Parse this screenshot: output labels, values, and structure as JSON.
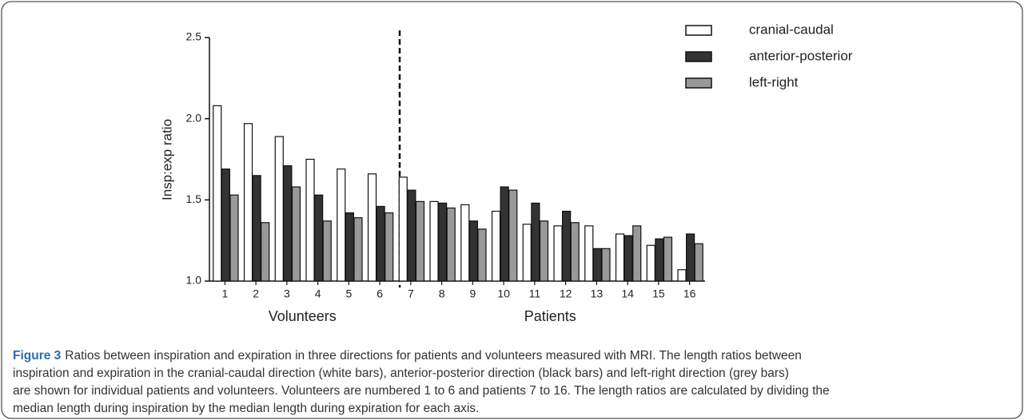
{
  "chart_data": {
    "type": "bar",
    "y_label": "Insp:exp ratio",
    "categories": [
      "1",
      "2",
      "3",
      "4",
      "5",
      "6",
      "7",
      "8",
      "9",
      "10",
      "11",
      "12",
      "13",
      "14",
      "15",
      "16"
    ],
    "groups": [
      {
        "label": "Volunteers",
        "categories": [
          0,
          5
        ]
      },
      {
        "label": "Patients",
        "categories": [
          6,
          15
        ]
      }
    ],
    "series": [
      {
        "name": "cranial-caudal",
        "color": "#ffffff",
        "values": [
          2.08,
          1.97,
          1.89,
          1.75,
          1.69,
          1.66,
          1.64,
          1.49,
          1.47,
          1.43,
          1.35,
          1.34,
          1.34,
          1.29,
          1.22,
          1.07
        ]
      },
      {
        "name": "anterior-posterior",
        "color": "#333333",
        "values": [
          1.69,
          1.65,
          1.71,
          1.53,
          1.42,
          1.46,
          1.56,
          1.48,
          1.37,
          1.58,
          1.48,
          1.43,
          1.2,
          1.28,
          1.26,
          1.29
        ]
      },
      {
        "name": "left-right",
        "color": "#999999",
        "values": [
          1.53,
          1.36,
          1.58,
          1.37,
          1.39,
          1.42,
          1.49,
          1.45,
          1.32,
          1.56,
          1.37,
          1.36,
          1.2,
          1.34,
          1.27,
          1.23
        ]
      }
    ],
    "ylim": [
      1,
      2.5
    ],
    "yticks": [
      {
        "value": 1,
        "label": "1.0"
      },
      1.5,
      {
        "value": 2,
        "label": "2.0"
      },
      2.5
    ],
    "legend": "top-right"
  },
  "caption": {
    "label": "Figure 3",
    "lines": [
      "Ratios between inspiration and expiration in three directions for patients and volunteers measured with MRI. The length ratios between",
      "inspiration and expiration in the cranial-caudal direction (white bars), anterior-posterior direction (black bars) and left-right direction (grey bars)",
      "are shown for individual patients and volunteers. Volunteers are numbered 1 to 6 and patients 7 to 16. The length ratios are calculated by dividing the",
      "median length during inspiration by the median length during expiration for each axis."
    ]
  }
}
